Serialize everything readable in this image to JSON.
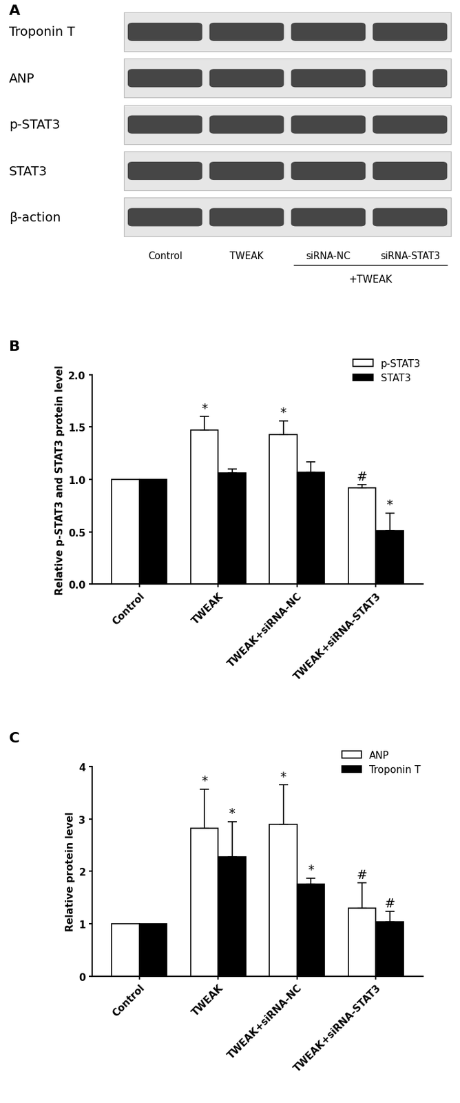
{
  "blot": {
    "panel": "A",
    "rows": [
      "Troponin T",
      "ANP",
      "p-STAT3",
      "STAT3",
      "β-action"
    ],
    "lanes": [
      "Control",
      "TWEAK",
      "siRNA-NC",
      "siRNA-STAT3"
    ],
    "group_label": "+TWEAK"
  },
  "chart_data": [
    {
      "type": "bar",
      "title": "B",
      "categories": [
        "Control",
        "TWEAK",
        "TWEAK+siRNA-NC",
        "TWEAK+siRNA-STAT3"
      ],
      "y_label": "Relative p-STAT3 and STAT3 protein level",
      "ylim": [
        0,
        2.0
      ],
      "yticks": [
        {
          "value": 0,
          "label": "0.0"
        },
        {
          "value": 0.5,
          "label": "0.5"
        },
        {
          "value": 1.0,
          "label": "1.0"
        },
        {
          "value": 1.5,
          "label": "1.5"
        },
        {
          "value": 2.0,
          "label": "2.0"
        }
      ],
      "legend": "upper right",
      "series": [
        {
          "name": "p-STAT3",
          "color": "#ffffff",
          "values": [
            1.0,
            1.47,
            1.43,
            0.92
          ],
          "errors": [
            null,
            0.13,
            0.13,
            0.03
          ],
          "marks": [
            null,
            "*",
            "*",
            "#"
          ]
        },
        {
          "name": "STAT3",
          "color": "#000000",
          "values": [
            1.0,
            1.06,
            1.07,
            0.51
          ],
          "errors": [
            null,
            0.04,
            0.1,
            0.17
          ],
          "marks": [
            null,
            null,
            null,
            "*"
          ]
        }
      ]
    },
    {
      "type": "bar",
      "title": "C",
      "categories": [
        "Control",
        "TWEAK",
        "TWEAK+siRNA-NC",
        "TWEAK+siRNA-STAT3"
      ],
      "y_label": "Relative protein level",
      "ylim": [
        0,
        4
      ],
      "yticks": [
        0,
        1,
        2,
        3,
        4
      ],
      "legend": "upper right",
      "series": [
        {
          "name": "ANP",
          "color": "#ffffff",
          "values": [
            1.0,
            2.82,
            2.9,
            1.3
          ],
          "errors": [
            null,
            0.75,
            0.75,
            0.48
          ],
          "marks": [
            null,
            "*",
            "*",
            "#"
          ]
        },
        {
          "name": "Troponin T",
          "color": "#000000",
          "values": [
            1.0,
            2.28,
            1.75,
            1.03
          ],
          "errors": [
            null,
            0.67,
            0.12,
            0.2
          ],
          "marks": [
            null,
            "*",
            "*",
            "#"
          ]
        }
      ]
    }
  ]
}
